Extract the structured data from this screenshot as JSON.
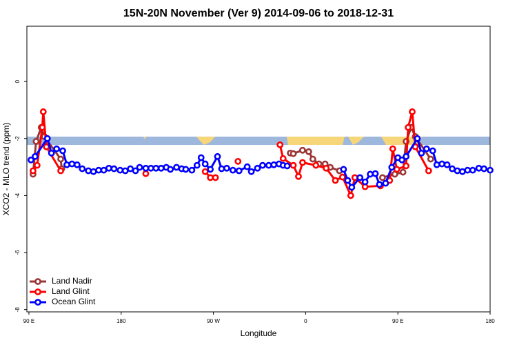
{
  "chart_data": {
    "type": "line",
    "title": "15N-20N November (Ver 9)   2014-09-06 to 2018-12-31",
    "x_label": "Longitude",
    "y_label": "XCO2 - MLO trend (ppm)",
    "xlim": [
      88,
      540
    ],
    "xticks": [
      {
        "value": 90,
        "label": "90 E"
      },
      {
        "value": 180,
        "label": "180"
      },
      {
        "value": 270,
        "label": "90 W"
      },
      {
        "value": 360,
        "label": "0"
      },
      {
        "value": 450,
        "label": "90 E"
      },
      {
        "value": 540,
        "label": "180"
      }
    ],
    "ylim": [
      -8.08,
      1.94
    ],
    "yticks": [
      0,
      -2,
      -4,
      -6,
      -8
    ],
    "legend": "lower left",
    "series": [
      {
        "name": "Land Nadir",
        "color": "#9b3535",
        "x": [
          94,
          97,
          102,
          105,
          121,
          122,
          200,
          345,
          348,
          357,
          363,
          367,
          373,
          379,
          384,
          393,
          420,
          435,
          447,
          455,
          458,
          463,
          467,
          482
        ],
        "values": [
          -3.25,
          -2.1,
          -1.61,
          -1.93,
          -2.72,
          -3.06,
          null,
          -2.51,
          -2.53,
          -2.41,
          -2.46,
          -2.72,
          -2.89,
          -2.89,
          -3.01,
          -3.13,
          null,
          -3.37,
          -3.25,
          -3.18,
          -2.1,
          -1.61,
          -1.93,
          -2.72
        ]
      },
      {
        "name": "Land Glint",
        "color": "#ff0000",
        "x": [
          94,
          98,
          103,
          104,
          107,
          121,
          160,
          204,
          230,
          262,
          267,
          272,
          285,
          294,
          320,
          335,
          338,
          348,
          353,
          357,
          370,
          380,
          389,
          396,
          404,
          408,
          418,
          433,
          442,
          445,
          449,
          458,
          460,
          464,
          467,
          480
        ],
        "values": [
          -3.13,
          -2.94,
          -1.61,
          -1.06,
          -2.29,
          -3.13,
          null,
          -3.23,
          null,
          -3.16,
          -3.37,
          -3.37,
          null,
          -2.8,
          null,
          -2.22,
          -2.7,
          -2.94,
          -3.33,
          -2.84,
          -2.94,
          -3.04,
          -3.47,
          -3.35,
          -4.0,
          -3.37,
          -3.69,
          -3.66,
          -3.47,
          -2.36,
          -3.08,
          -2.96,
          -1.61,
          -1.06,
          -2.29,
          -3.13
        ]
      },
      {
        "name": "Ocean Glint",
        "color": "#0000ff",
        "x": [
          92,
          96,
          108,
          112,
          117,
          123,
          127,
          132,
          137,
          142,
          148,
          153,
          158,
          163,
          168,
          173,
          179,
          184,
          189,
          194,
          198,
          204,
          209,
          214,
          219,
          224,
          228,
          234,
          239,
          243,
          249,
          254,
          258,
          262,
          267,
          274,
          278,
          283,
          289,
          295,
          303,
          307,
          313,
          318,
          324,
          329,
          334,
          338,
          342,
          370,
          397,
          401,
          405,
          413,
          418,
          423,
          428,
          432,
          438,
          444,
          450,
          454,
          458,
          469,
          473,
          478,
          484,
          488,
          493,
          498,
          503,
          508,
          513,
          518,
          523,
          529,
          534,
          540
        ],
        "values": [
          -2.75,
          -2.63,
          -2.0,
          -2.51,
          -2.36,
          -2.43,
          -2.92,
          -2.89,
          -2.92,
          -3.06,
          -3.13,
          -3.16,
          -3.11,
          -3.11,
          -3.04,
          -3.06,
          -3.11,
          -3.13,
          -3.06,
          -3.13,
          -3.01,
          -3.04,
          -3.04,
          -3.04,
          -3.04,
          -3.01,
          -3.08,
          -3.01,
          -3.06,
          -3.08,
          -3.11,
          -2.94,
          -2.67,
          -2.89,
          -3.08,
          -2.63,
          -3.06,
          -3.04,
          -3.11,
          -3.13,
          -2.99,
          -3.16,
          -3.04,
          -2.94,
          -2.94,
          -2.92,
          -2.89,
          -2.94,
          -2.96,
          null,
          -3.08,
          -3.47,
          -3.71,
          -3.37,
          -3.52,
          -3.25,
          -3.23,
          -3.61,
          -3.57,
          -3.01,
          -2.67,
          -2.75,
          -2.63,
          -2.0,
          -2.51,
          -2.36,
          -2.43,
          -2.92,
          -2.89,
          -2.92,
          -3.06,
          -3.13,
          -3.16,
          -3.11,
          -3.11,
          -3.04,
          -3.06,
          -3.11
        ]
      }
    ]
  }
}
